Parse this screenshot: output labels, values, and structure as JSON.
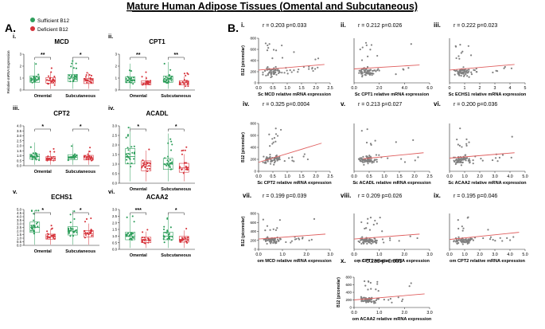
{
  "figure_title": "Mature Human Adipose Tissues (Omental and Subcutaneous)",
  "panel_a_label": "A.",
  "panel_b_label": "B.",
  "legend": [
    {
      "label": "Sufficient B12",
      "color": "#2e9e5b"
    },
    {
      "label": "Deficient B12",
      "color": "#d6323a"
    }
  ],
  "colors": {
    "sufficient": "#2e9e5b",
    "deficient": "#d6323a",
    "scatter_point": "#808080",
    "regression_line": "#e06060"
  },
  "chart_data": [
    {
      "type": "scatter",
      "panel": "i.",
      "title": "MCD",
      "ylabel": "Relative mRNA Expression",
      "categories": [
        "Omental",
        "Subcutaneous"
      ],
      "ylim": [
        0,
        3
      ],
      "yticks": [
        0,
        1,
        2,
        3
      ],
      "series": [
        {
          "name": "Sufficient B12",
          "medians": [
            0.9,
            1.0
          ]
        },
        {
          "name": "Deficient B12",
          "medians": [
            0.8,
            0.75
          ]
        }
      ],
      "significance": [
        "**",
        "*"
      ]
    },
    {
      "type": "scatter",
      "panel": "ii.",
      "title": "CPT1",
      "ylabel": "",
      "categories": [
        "Omental",
        "Subcutaneous"
      ],
      "ylim": [
        0,
        3
      ],
      "yticks": [
        0,
        1,
        2,
        3
      ],
      "series": [
        {
          "name": "Sufficient B12",
          "medians": [
            0.85,
            0.9
          ]
        },
        {
          "name": "Deficient B12",
          "medians": [
            0.6,
            0.6
          ]
        }
      ],
      "significance": [
        "**",
        "**"
      ]
    },
    {
      "type": "scatter",
      "panel": "iii.",
      "title": "CPT2",
      "ylabel": "",
      "categories": [
        "Omental",
        "Subcutaneous"
      ],
      "ylim": [
        0,
        4
      ],
      "yticks": [
        "0.0",
        "0.5",
        "1.0",
        "1.5",
        "2.0",
        "2.5",
        "3.0",
        "3.5",
        "4.0"
      ],
      "series": [
        {
          "name": "Sufficient B12",
          "medians": [
            0.9,
            0.85
          ]
        },
        {
          "name": "Deficient B12",
          "medians": [
            0.7,
            0.8
          ]
        }
      ],
      "significance": [
        "*",
        "*"
      ]
    },
    {
      "type": "scatter",
      "panel": "iv.",
      "title": "ACADL",
      "ylabel": "",
      "categories": [
        "Omental",
        "Subcutaneous"
      ],
      "ylim": [
        0,
        3
      ],
      "yticks": [
        "0.0",
        "0.5",
        "1.0",
        "1.5",
        "2.0",
        "2.5",
        "3.0"
      ],
      "series": [
        {
          "name": "Sufficient B12",
          "medians": [
            1.4,
            1.0
          ]
        },
        {
          "name": "Deficient B12",
          "medians": [
            0.9,
            0.8
          ]
        }
      ],
      "significance": [
        "*",
        "*"
      ]
    },
    {
      "type": "scatter",
      "panel": "v.",
      "title": "ECHS1",
      "ylabel": "",
      "categories": [
        "Omental",
        "Subcutaneous"
      ],
      "ylim": [
        0,
        5
      ],
      "yticks": [
        "0.0",
        "0.5",
        "1.0",
        "1.5",
        "2.0",
        "2.5",
        "3.0",
        "3.5",
        "4.0",
        "4.5",
        "5.0"
      ],
      "series": [
        {
          "name": "Sufficient B12",
          "medians": [
            2.5,
            2.0
          ]
        },
        {
          "name": "Deficient B12",
          "medians": [
            1.2,
            1.6
          ]
        }
      ],
      "significance": [
        "*",
        "*"
      ]
    },
    {
      "type": "scatter",
      "panel": "vi.",
      "title": "ACAA2",
      "ylabel": "",
      "categories": [
        "Omental",
        "Subcutaneous"
      ],
      "ylim": [
        0,
        3
      ],
      "yticks": [
        "0.0",
        "0.5",
        "1.0",
        "1.5",
        "2.0",
        "2.5",
        "3.0"
      ],
      "series": [
        {
          "name": "Sufficient B12",
          "medians": [
            1.0,
            1.0
          ]
        },
        {
          "name": "Deficient B12",
          "medians": [
            0.7,
            0.75
          ]
        }
      ],
      "significance": [
        "***",
        "*"
      ]
    },
    {
      "type": "scatter",
      "panel": "i.",
      "stats": "r = 0.203  p=0.033",
      "xlabel": "Sc MCD relative mRNA expression",
      "ylabel": "B12 (picomolar)",
      "xlim": [
        0,
        2.5
      ],
      "xticks": [
        "0.0",
        "0.5",
        "1.0",
        "1.5",
        "2.0",
        "2.5"
      ],
      "ylim": [
        0,
        800
      ],
      "yticks": [
        "0",
        "200",
        "400",
        "600",
        "800"
      ],
      "fit": [
        [
          0,
          230
        ],
        [
          2.3,
          330
        ]
      ]
    },
    {
      "type": "scatter",
      "panel": "ii.",
      "stats": "r = 0.212  p=0.026",
      "xlabel": "Sc CPT1 relative mRNA expression",
      "ylabel": "",
      "xlim": [
        0,
        6
      ],
      "xticks": [
        "0.0",
        "2.0",
        "4.0",
        "6.0"
      ],
      "ylim": [
        0,
        800
      ],
      "yticks": [],
      "fit": [
        [
          0,
          250
        ],
        [
          5.2,
          320
        ]
      ]
    },
    {
      "type": "scatter",
      "panel": "iii.",
      "stats": "r = 0.222  p=0.023",
      "xlabel": "Sc ECHS1 relative mRNA expression",
      "ylabel": "",
      "xlim": [
        0,
        5
      ],
      "xticks": [
        "0",
        "1",
        "2",
        "3",
        "4",
        "5"
      ],
      "ylim": [
        0,
        800
      ],
      "yticks": [],
      "fit": [
        [
          0,
          230
        ],
        [
          4.3,
          330
        ]
      ]
    },
    {
      "type": "scatter",
      "panel": "iv.",
      "stats": "r = 0.325  p=0.0004",
      "xlabel": "Sc CPT2 relative mRNA expression",
      "ylabel": "B12 (picomolar)",
      "xlim": [
        0,
        2.5
      ],
      "xticks": [
        "0.0",
        "0.5",
        "1.0",
        "1.5",
        "2.0",
        "2.5"
      ],
      "ylim": [
        0,
        800
      ],
      "yticks": [
        "0",
        "200",
        "400",
        "600",
        "800"
      ],
      "fit": [
        [
          0,
          150
        ],
        [
          2.2,
          470
        ]
      ]
    },
    {
      "type": "scatter",
      "panel": "v.",
      "stats": "r = 0.213  p=0.027",
      "xlabel": "Sc ACADL relative mRNA expression",
      "ylabel": "",
      "xlim": [
        0,
        2.5
      ],
      "xticks": [
        "0.0",
        "0.5",
        "1.0",
        "1.5",
        "2.0",
        "2.5"
      ],
      "ylim": [
        0,
        800
      ],
      "yticks": [],
      "fit": [
        [
          0.3,
          210
        ],
        [
          2.3,
          310
        ]
      ]
    },
    {
      "type": "scatter",
      "panel": "vi.",
      "stats": "r = 0.200  p=0.036",
      "xlabel": "Sc ACAA2 relative mRNA expression",
      "ylabel": "",
      "xlim": [
        0,
        5
      ],
      "xticks": [
        "0.0",
        "1.0",
        "2.0",
        "3.0",
        "4.0",
        "5.0"
      ],
      "ylim": [
        0,
        800
      ],
      "yticks": [],
      "fit": [
        [
          0,
          220
        ],
        [
          4.3,
          310
        ]
      ]
    },
    {
      "type": "scatter",
      "panel": "vii.",
      "stats": "r = 0.199  p=0.039",
      "xlabel": "om MCD relative mRNA expression",
      "ylabel": "B12 (picomolar)",
      "xlim": [
        0,
        3
      ],
      "xticks": [
        "0.0",
        "1.0",
        "2.0",
        "3.0"
      ],
      "ylim": [
        0,
        800
      ],
      "yticks": [
        "0",
        "200",
        "400",
        "600",
        "800"
      ],
      "fit": [
        [
          0,
          230
        ],
        [
          2.8,
          340
        ]
      ]
    },
    {
      "type": "scatter",
      "panel": "viii.",
      "stats": "r = 0.209  p=0.026",
      "xlabel": "om CPT1 relative mRNA expression",
      "ylabel": "",
      "xlim": [
        0,
        3
      ],
      "xticks": [
        "0.0",
        "1.0",
        "2.0",
        "3.0"
      ],
      "ylim": [
        0,
        800
      ],
      "yticks": [],
      "fit": [
        [
          0,
          230
        ],
        [
          2.6,
          340
        ]
      ]
    },
    {
      "type": "scatter",
      "panel": "ix.",
      "stats": "r = 0.195  p=0.046",
      "xlabel": "om CPT2 relative mRNA expression",
      "ylabel": "",
      "xlim": [
        0,
        5
      ],
      "xticks": [
        "0.0",
        "1.0",
        "2.0",
        "3.0",
        "4.0",
        "5.0"
      ],
      "ylim": [
        0,
        800
      ],
      "yticks": [],
      "fit": [
        [
          0,
          220
        ],
        [
          4.6,
          380
        ]
      ]
    },
    {
      "type": "scatter",
      "panel": "x.",
      "stats": "r = 0.289  p=0.001",
      "xlabel": "om ACAA2 relative mRNA expression",
      "ylabel": "B12 (picomolar)",
      "xlim": [
        0,
        3
      ],
      "xticks": [
        "0.0",
        "1.0",
        "2.0",
        "3.0"
      ],
      "ylim": [
        0,
        800
      ],
      "yticks": [
        "0",
        "200",
        "400",
        "600",
        "800"
      ],
      "fit": [
        [
          0,
          200
        ],
        [
          2.8,
          360
        ]
      ]
    }
  ]
}
